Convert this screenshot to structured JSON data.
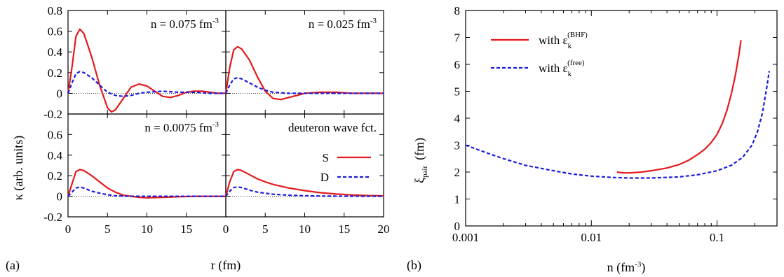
{
  "left_figure": {
    "panel_label": "(a)",
    "ylabel": "κ  (arb. units)",
    "xlabel": "r   (fm)"
  },
  "right_figure": {
    "panel_label": "(b)",
    "ylabel_main": "ξ",
    "ylabel_sub": "pair",
    "ylabel_unit": "(fm)",
    "xlabel": "n   (fm",
    "xlabel_sup": "-3",
    "xlabel_close": ")"
  },
  "colors": {
    "red": "#e41a1c",
    "blue": "#1c1cdc",
    "frame": "#000000"
  },
  "chart_data": [
    {
      "type": "line",
      "title": "n = 0.075 fm-3",
      "title_text": "n = 0.075 fm",
      "title_sup": "-3",
      "xlim": [
        0,
        20
      ],
      "ylim": [
        -0.2,
        0.8
      ],
      "yticks": [
        "0.8",
        "0.6",
        "0.4",
        "0.2",
        "0",
        "-0.2"
      ],
      "xticks": [],
      "series": [
        {
          "color": "red",
          "style": "solid",
          "x": [
            0,
            0.5,
            1,
            1.5,
            2,
            3,
            4,
            5,
            5.5,
            6,
            7,
            8,
            9,
            10,
            11,
            12,
            13,
            14,
            15,
            16,
            17,
            18,
            19,
            20
          ],
          "y": [
            0,
            0.25,
            0.55,
            0.62,
            0.58,
            0.35,
            0.08,
            -0.14,
            -0.18,
            -0.16,
            -0.05,
            0.06,
            0.09,
            0.07,
            0.02,
            -0.03,
            -0.04,
            -0.02,
            0.01,
            0.02,
            0.02,
            0.01,
            0.0,
            0.0
          ]
        },
        {
          "color": "blue",
          "style": "dashed",
          "x": [
            0,
            0.5,
            1,
            1.5,
            2,
            3,
            4,
            5,
            6,
            7,
            8,
            9,
            10,
            12,
            14,
            16,
            18,
            20
          ],
          "y": [
            0,
            0.1,
            0.19,
            0.21,
            0.2,
            0.15,
            0.08,
            0.01,
            -0.02,
            -0.03,
            -0.02,
            0.0,
            0.01,
            0.02,
            0.01,
            0.01,
            0.0,
            0.0
          ]
        }
      ]
    },
    {
      "type": "line",
      "title": "n = 0.025 fm-3",
      "title_text": "n = 0.025 fm",
      "title_sup": "-3",
      "xlim": [
        0,
        20
      ],
      "ylim": [
        -0.2,
        0.8
      ],
      "yticks": [],
      "xticks": [],
      "series": [
        {
          "color": "red",
          "style": "solid",
          "x": [
            0,
            0.5,
            1,
            1.5,
            2,
            3,
            4,
            5,
            6,
            7,
            8,
            9,
            10,
            12,
            14,
            16,
            18,
            20
          ],
          "y": [
            0,
            0.25,
            0.42,
            0.45,
            0.43,
            0.32,
            0.16,
            0.02,
            -0.05,
            -0.06,
            -0.04,
            -0.02,
            0.0,
            0.01,
            0.01,
            0.0,
            0.0,
            0.0
          ]
        },
        {
          "color": "blue",
          "style": "dashed",
          "x": [
            0,
            0.5,
            1,
            1.5,
            2,
            3,
            4,
            5,
            6,
            8,
            10,
            12,
            15,
            20
          ],
          "y": [
            0,
            0.08,
            0.14,
            0.15,
            0.14,
            0.1,
            0.06,
            0.03,
            0.01,
            0.0,
            0.0,
            0.0,
            0.0,
            0.0
          ]
        }
      ]
    },
    {
      "type": "line",
      "title": "n = 0.0075 fm-3",
      "title_text": "n = 0.0075 fm",
      "title_sup": "-3",
      "xlim": [
        0,
        20
      ],
      "ylim": [
        -0.2,
        0.8
      ],
      "yticks": [
        "",
        "0.6",
        "0.4",
        "0.2",
        "0",
        "-0.2"
      ],
      "xticks": [
        "0",
        "5",
        "10",
        "15"
      ],
      "series": [
        {
          "color": "red",
          "style": "solid",
          "x": [
            0,
            0.5,
            1,
            1.5,
            2,
            3,
            4,
            5,
            6,
            7,
            8,
            9,
            10,
            12,
            14,
            16,
            18,
            20
          ],
          "y": [
            0,
            0.12,
            0.24,
            0.26,
            0.25,
            0.2,
            0.14,
            0.08,
            0.04,
            0.01,
            0.0,
            -0.01,
            -0.015,
            -0.01,
            -0.005,
            0.0,
            0.0,
            0.0
          ]
        },
        {
          "color": "blue",
          "style": "dashed",
          "x": [
            0,
            0.5,
            1,
            1.5,
            2,
            3,
            4,
            5,
            6,
            8,
            10,
            12,
            15,
            20
          ],
          "y": [
            0,
            0.04,
            0.08,
            0.09,
            0.08,
            0.05,
            0.03,
            0.015,
            0.005,
            0.0,
            0.0,
            0.0,
            0.0,
            0.0
          ]
        }
      ]
    },
    {
      "type": "line",
      "title": "deuteron wave fct.",
      "title_text": "deuteron wave fct.",
      "title_sup": "",
      "xlim": [
        0,
        20
      ],
      "ylim": [
        -0.2,
        0.8
      ],
      "yticks": [],
      "xticks": [
        "0",
        "5",
        "10",
        "15",
        "20"
      ],
      "legend": [
        {
          "label": "S",
          "color": "red",
          "style": "solid"
        },
        {
          "label": "D",
          "color": "blue",
          "style": "dashed"
        }
      ],
      "series": [
        {
          "name": "S",
          "color": "red",
          "style": "solid",
          "x": [
            0,
            0.5,
            1,
            1.5,
            2,
            3,
            4,
            5,
            6,
            8,
            10,
            12,
            14,
            16,
            18,
            20
          ],
          "y": [
            0,
            0.14,
            0.24,
            0.26,
            0.25,
            0.21,
            0.17,
            0.14,
            0.115,
            0.08,
            0.055,
            0.035,
            0.022,
            0.013,
            0.007,
            0.004
          ]
        },
        {
          "name": "D",
          "color": "blue",
          "style": "dashed",
          "x": [
            0,
            0.5,
            1,
            1.5,
            2,
            3,
            4,
            5,
            6,
            8,
            10,
            12,
            15,
            20
          ],
          "y": [
            0,
            0.05,
            0.085,
            0.09,
            0.085,
            0.06,
            0.04,
            0.03,
            0.02,
            0.01,
            0.005,
            0.002,
            0.001,
            0.0
          ]
        }
      ]
    },
    {
      "type": "line",
      "xscale": "log",
      "xlim": [
        0.001,
        0.3
      ],
      "ylim": [
        0,
        8
      ],
      "yticks": [
        "0",
        "1",
        "2",
        "3",
        "4",
        "5",
        "6",
        "7",
        "8"
      ],
      "xticks": [
        "0.001",
        "0.01",
        "0.1"
      ],
      "legend": [
        {
          "label": "with ε",
          "sub": "k",
          "sup": "(BHF)",
          "color": "red",
          "style": "solid"
        },
        {
          "label": "with ε",
          "sub": "k",
          "sup": "(free)",
          "color": "blue",
          "style": "dashed"
        }
      ],
      "series": [
        {
          "name": "with εk(BHF)",
          "color": "red",
          "style": "solid",
          "x": [
            0.016,
            0.018,
            0.02,
            0.025,
            0.03,
            0.04,
            0.05,
            0.06,
            0.07,
            0.08,
            0.09,
            0.1,
            0.11,
            0.12,
            0.13,
            0.14,
            0.15,
            0.155
          ],
          "y": [
            2.0,
            1.97,
            1.97,
            2.0,
            2.05,
            2.15,
            2.28,
            2.45,
            2.65,
            2.85,
            3.1,
            3.4,
            3.8,
            4.3,
            4.9,
            5.6,
            6.4,
            6.9
          ]
        },
        {
          "name": "with εk(free)",
          "color": "blue",
          "style": "dashed",
          "x": [
            0.001,
            0.0015,
            0.002,
            0.003,
            0.005,
            0.007,
            0.01,
            0.015,
            0.02,
            0.03,
            0.05,
            0.07,
            0.1,
            0.13,
            0.16,
            0.19,
            0.21,
            0.23,
            0.25,
            0.26
          ],
          "y": [
            3.0,
            2.7,
            2.5,
            2.25,
            2.05,
            1.93,
            1.85,
            1.8,
            1.78,
            1.78,
            1.82,
            1.9,
            2.05,
            2.25,
            2.55,
            3.0,
            3.5,
            4.2,
            5.2,
            5.75
          ]
        }
      ]
    }
  ]
}
